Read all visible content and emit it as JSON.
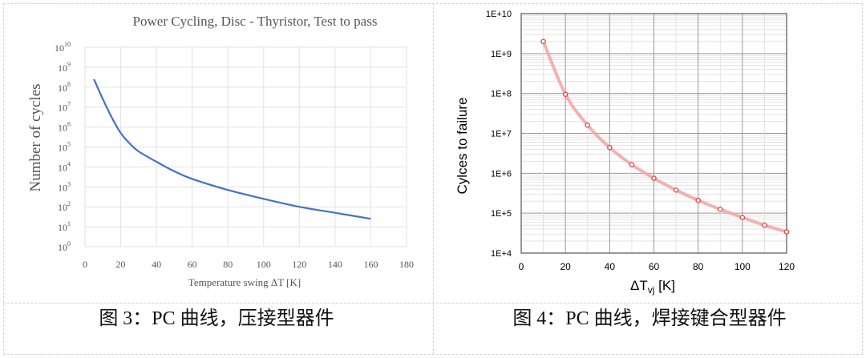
{
  "captions": {
    "left": "图 3：PC 曲线，压接型器件",
    "right": "图 4：PC 曲线，焊接键合型器件"
  },
  "chart_data": [
    {
      "type": "line",
      "title": "Power Cycling, Disc - Thyristor, Test to pass",
      "xlabel": "Temperature swing ΔT [K]",
      "ylabel": "Number of cycles",
      "y_scale": "log",
      "xlim": [
        0,
        180
      ],
      "ylim_exponents": [
        0,
        10
      ],
      "x_ticks": [
        0,
        20,
        40,
        60,
        80,
        100,
        120,
        140,
        160,
        180
      ],
      "y_tick_base": "10",
      "grid": true,
      "color": "#4472c4",
      "series": [
        {
          "x": [
            5,
            10,
            15,
            20,
            25,
            30,
            40,
            50,
            60,
            80,
            100,
            120,
            140,
            160
          ],
          "y": [
            250000000,
            25000000,
            3000000,
            500000,
            150000,
            60000,
            18000,
            6000,
            2500,
            700,
            250,
            100,
            50,
            25
          ]
        }
      ]
    },
    {
      "type": "line",
      "title": "",
      "xlabel": "ΔT",
      "xlabel_sub": "vj",
      "xlabel_unit": " [K]",
      "ylabel": "Cylces to failure",
      "y_scale": "log",
      "xlim": [
        0,
        120
      ],
      "ylim_exponents": [
        4,
        10
      ],
      "x_ticks": [
        0,
        20,
        40,
        60,
        80,
        100,
        120
      ],
      "y_tick_prefix": "1E+",
      "grid": true,
      "color": "#e05050",
      "series": [
        {
          "x": [
            10,
            20,
            30,
            40,
            50,
            60,
            70,
            80,
            90,
            100,
            110,
            120
          ],
          "y": [
            2000000000,
            95000000,
            16000000,
            4400000,
            1650000,
            750000,
            380000,
            210000,
            125000,
            78000,
            50000,
            34000
          ]
        }
      ]
    }
  ]
}
